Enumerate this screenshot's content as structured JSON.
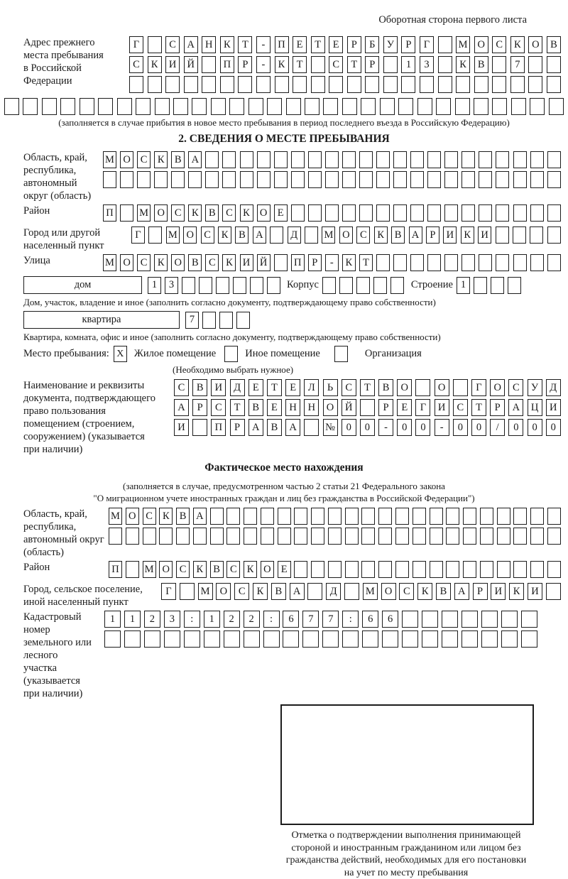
{
  "page": {
    "header_note": "Оборотная сторона первого листа"
  },
  "prev_address": {
    "label_lines": [
      "Адрес прежнего",
      "места пребывания",
      "в Российской",
      "Федерации"
    ],
    "rows": [
      {
        "text": "Г САНКТ-ПЕТЕРБУРГ МОСКОВ",
        "len": 24
      },
      {
        "text": "СКИЙ ПР-КТ СТР 13 КВ 7",
        "len": 24
      },
      {
        "text": "",
        "len": 24
      }
    ],
    "full_row": {
      "text": "",
      "len": 30
    },
    "note": "(заполняется в случае прибытия в новое место пребывания в период последнего въезда в Российскую Федерацию)"
  },
  "section2": {
    "title": "2. СВЕДЕНИЯ О МЕСТЕ ПРЕБЫВАНИЯ",
    "region": {
      "label_lines": [
        "Область, край,",
        "республика,",
        "автономный",
        "округ (область)"
      ],
      "rows": [
        {
          "text": "МОСКВА",
          "len": 27
        },
        {
          "text": "",
          "len": 27
        }
      ]
    },
    "district": {
      "label": "Район",
      "row": {
        "text": "П МОСКВСКОЕ",
        "len": 27
      }
    },
    "city": {
      "label_lines": [
        "Город или другой",
        "населенный пункт"
      ],
      "row": {
        "text": "Г МОСКВА Д МОСКВАРИКИ",
        "len": 25
      }
    },
    "street": {
      "label": "Улица",
      "row": {
        "text": "МОСКОВСКИЙ ПР-КТ",
        "len": 27
      }
    },
    "house": {
      "box_label": "дом",
      "cells": {
        "text": "13",
        "len": 8
      },
      "korpus_label": "Корпус",
      "korpus_cells": {
        "text": "",
        "len": 5
      },
      "stroenie_label": "Строение",
      "stroenie_cells": {
        "text": "1",
        "len": 4
      },
      "note": "Дом, участок, владение и иное (заполнить согласно документу, подтверждающему право собственности)"
    },
    "apartment": {
      "box_label": "квартира",
      "cells": {
        "text": "7",
        "len": 4
      },
      "note": "Квартира, комната, офис и иное (заполнить согласно документу, подтверждающему право собственности)"
    },
    "stay_type": {
      "label": "Место пребывания:",
      "options": [
        {
          "label": "Жилое помещение",
          "mark": "X"
        },
        {
          "label": "Иное помещение",
          "mark": ""
        },
        {
          "label": "Организация",
          "mark": ""
        }
      ],
      "note": "(Необходимо выбрать нужное)"
    },
    "doc": {
      "label_lines": [
        "Наименование и реквизиты",
        "документа, подтверждающего",
        "право пользования",
        "помещением (строением,",
        "сооружением) (указывается",
        "при наличии)"
      ],
      "rows": [
        {
          "text": "СВИДЕТЕЛЬСТВО О ГОСУД",
          "len": 21
        },
        {
          "text": "АРСТВЕННОЙ РЕГИСТРАЦИ",
          "len": 21
        },
        {
          "text": "И ПРАВА №00-00-00/000",
          "len": 21
        }
      ]
    }
  },
  "actual_location": {
    "title": "Фактическое место нахождения",
    "note_lines": [
      "(заполняется в случае, предусмотренном частью 2 статьи 21 Федерального закона",
      "\"О миграционном учете иностранных граждан и лиц без гражданства в Российской Федерации\")"
    ],
    "region": {
      "label_lines": [
        "Область, край,",
        "республика,",
        "автономный округ",
        "(область)"
      ],
      "rows": [
        {
          "text": "МОСКВА",
          "len": 27
        },
        {
          "text": "",
          "len": 27
        }
      ]
    },
    "district": {
      "label": "Район",
      "row": {
        "text": "П МОСКВСКОЕ",
        "len": 27
      }
    },
    "city": {
      "label_lines": [
        "Город, сельское поселение,",
        "иной населенный пункт"
      ],
      "row": {
        "text": "Г МОСКВА Д МОСКВАРИКИ",
        "len": 22
      }
    },
    "cadastre": {
      "label_lines": [
        "Кадастровый номер",
        "земельного или лесного",
        "участка (указывается",
        "при наличии)"
      ],
      "rows": [
        {
          "text": "1123:122:677:66",
          "len": 22
        },
        {
          "text": "",
          "len": 22
        }
      ]
    },
    "stamp_caption_lines": [
      "Отметка о подтверждении выполнения принимающей",
      "стороной и иностранным гражданином или лицом без",
      "гражданства действий, необходимых для его постановки",
      "на учет по месту пребывания"
    ]
  }
}
